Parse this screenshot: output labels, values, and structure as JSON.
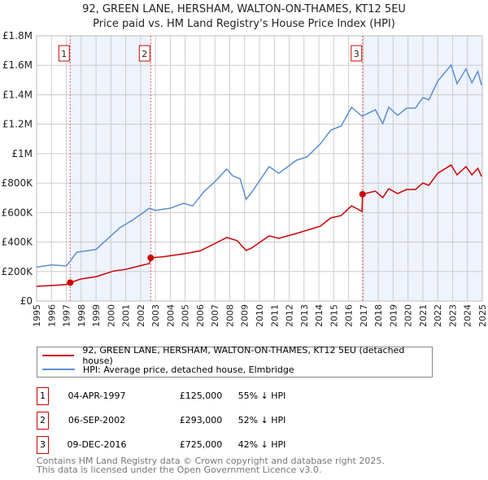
{
  "title": "92, GREEN LANE, HERSHAM, WALTON-ON-THAMES, KT12 5EU",
  "subtitle": "Price paid vs. HM Land Registry's House Price Index (HPI)",
  "colors": {
    "price": "#cc0000",
    "hpi": "#5b8fd0",
    "shade": "#eef3fc",
    "grid": "#cccccc"
  },
  "chart_data": {
    "type": "line",
    "title": "92, GREEN LANE, HERSHAM, WALTON-ON-THAMES, KT12 5EU",
    "xlim": [
      1995,
      2025
    ],
    "ylim": [
      0,
      1800000
    ],
    "x_ticks": [
      "1995",
      "1996",
      "1997",
      "1998",
      "1999",
      "2000",
      "2001",
      "2002",
      "2003",
      "2004",
      "2005",
      "2006",
      "2007",
      "2008",
      "2009",
      "2010",
      "2011",
      "2012",
      "2013",
      "2014",
      "2015",
      "2016",
      "2017",
      "2018",
      "2019",
      "2020",
      "2021",
      "2022",
      "2023",
      "2024",
      "2025"
    ],
    "y_ticks": [
      {
        "v": 0,
        "label": "£0"
      },
      {
        "v": 200000,
        "label": "£200K"
      },
      {
        "v": 400000,
        "label": "£400K"
      },
      {
        "v": 600000,
        "label": "£600K"
      },
      {
        "v": 800000,
        "label": "£800K"
      },
      {
        "v": 1000000,
        "label": "£1M"
      },
      {
        "v": 1200000,
        "label": "£1.2M"
      },
      {
        "v": 1400000,
        "label": "£1.4M"
      },
      {
        "v": 1600000,
        "label": "£1.6M"
      },
      {
        "v": 1800000,
        "label": "£1.8M"
      }
    ],
    "grid": true,
    "series": [
      {
        "name": "92, GREEN LANE, HERSHAM, WALTON-ON-THAMES, KT12 5EU (detached house)",
        "key": "price",
        "points": [
          [
            1995,
            100000
          ],
          [
            1996,
            105000
          ],
          [
            1997.0,
            112000
          ],
          [
            1997.26,
            125000
          ],
          [
            1998,
            150000
          ],
          [
            1999,
            165000
          ],
          [
            2000.2,
            204000
          ],
          [
            2001,
            215000
          ],
          [
            2002,
            240000
          ],
          [
            2002.6,
            255000
          ],
          [
            2002.68,
            293000
          ],
          [
            2003.5,
            300000
          ],
          [
            2004.9,
            320000
          ],
          [
            2006,
            340000
          ],
          [
            2007,
            390000
          ],
          [
            2007.8,
            431000
          ],
          [
            2008.5,
            410000
          ],
          [
            2009.1,
            343000
          ],
          [
            2009.46,
            359000
          ],
          [
            2010.65,
            442000
          ],
          [
            2011.3,
            425000
          ],
          [
            2012.5,
            459000
          ],
          [
            2014.1,
            508000
          ],
          [
            2014.8,
            564000
          ],
          [
            2015.5,
            580000
          ],
          [
            2016.2,
            646000
          ],
          [
            2016.9,
            608000
          ],
          [
            2016.94,
            725000
          ],
          [
            2017.8,
            746000
          ],
          [
            2018.3,
            702000
          ],
          [
            2018.7,
            762000
          ],
          [
            2019.3,
            729000
          ],
          [
            2019.9,
            757000
          ],
          [
            2020.5,
            757000
          ],
          [
            2021.0,
            801000
          ],
          [
            2021.4,
            785000
          ],
          [
            2022.0,
            867000
          ],
          [
            2022.9,
            923000
          ],
          [
            2023.3,
            856000
          ],
          [
            2023.9,
            912000
          ],
          [
            2024.3,
            856000
          ],
          [
            2024.7,
            901000
          ],
          [
            2024.95,
            845000
          ]
        ]
      },
      {
        "name": "HPI: Average price, detached house, Elmbridge",
        "key": "hpi",
        "points": [
          [
            1995,
            230000
          ],
          [
            1996,
            245000
          ],
          [
            1997.0,
            238000
          ],
          [
            1997.26,
            270000
          ],
          [
            1997.7,
            331000
          ],
          [
            1999,
            350000
          ],
          [
            2000.6,
            497000
          ],
          [
            2001.5,
            552000
          ],
          [
            2002.6,
            630000
          ],
          [
            2003,
            615000
          ],
          [
            2004,
            630000
          ],
          [
            2004.9,
            663000
          ],
          [
            2005.5,
            645000
          ],
          [
            2006.3,
            746000
          ],
          [
            2007,
            810000
          ],
          [
            2007.8,
            895000
          ],
          [
            2008.2,
            850000
          ],
          [
            2008.7,
            830000
          ],
          [
            2009.1,
            690000
          ],
          [
            2009.46,
            735000
          ],
          [
            2010.65,
            912000
          ],
          [
            2011.3,
            867000
          ],
          [
            2012.5,
            956000
          ],
          [
            2013.2,
            978000
          ],
          [
            2014.1,
            1066000
          ],
          [
            2014.8,
            1160000
          ],
          [
            2015.5,
            1188000
          ],
          [
            2016.2,
            1315000
          ],
          [
            2016.9,
            1254000
          ],
          [
            2017.8,
            1298000
          ],
          [
            2018.3,
            1204000
          ],
          [
            2018.7,
            1315000
          ],
          [
            2019.3,
            1260000
          ],
          [
            2019.9,
            1309000
          ],
          [
            2020.5,
            1309000
          ],
          [
            2021.0,
            1381000
          ],
          [
            2021.4,
            1365000
          ],
          [
            2022.0,
            1492000
          ],
          [
            2022.9,
            1602000
          ],
          [
            2023.3,
            1475000
          ],
          [
            2023.9,
            1575000
          ],
          [
            2024.3,
            1481000
          ],
          [
            2024.7,
            1558000
          ],
          [
            2024.95,
            1464000
          ]
        ]
      }
    ],
    "sales": [
      {
        "n": "1",
        "x": 1997.26,
        "y": 125000
      },
      {
        "n": "2",
        "x": 2002.68,
        "y": 293000
      },
      {
        "n": "3",
        "x": 2016.94,
        "y": 725000
      }
    ],
    "shaded": [
      [
        1997.26,
        2002.68
      ],
      [
        2016.94,
        2025
      ]
    ],
    "legend_position": "below"
  },
  "legend": {
    "price": "92, GREEN LANE, HERSHAM, WALTON-ON-THAMES, KT12 5EU (detached house)",
    "hpi": "HPI: Average price, detached house, Elmbridge"
  },
  "transactions": [
    {
      "n": "1",
      "date": "04-APR-1997",
      "price": "£125,000",
      "hpi": "55% ↓ HPI"
    },
    {
      "n": "2",
      "date": "06-SEP-2002",
      "price": "£293,000",
      "hpi": "52% ↓ HPI"
    },
    {
      "n": "3",
      "date": "09-DEC-2016",
      "price": "£725,000",
      "hpi": "42% ↓ HPI"
    }
  ],
  "footer": [
    "Contains HM Land Registry data © Crown copyright and database right 2025.",
    "This data is licensed under the Open Government Licence v3.0."
  ]
}
